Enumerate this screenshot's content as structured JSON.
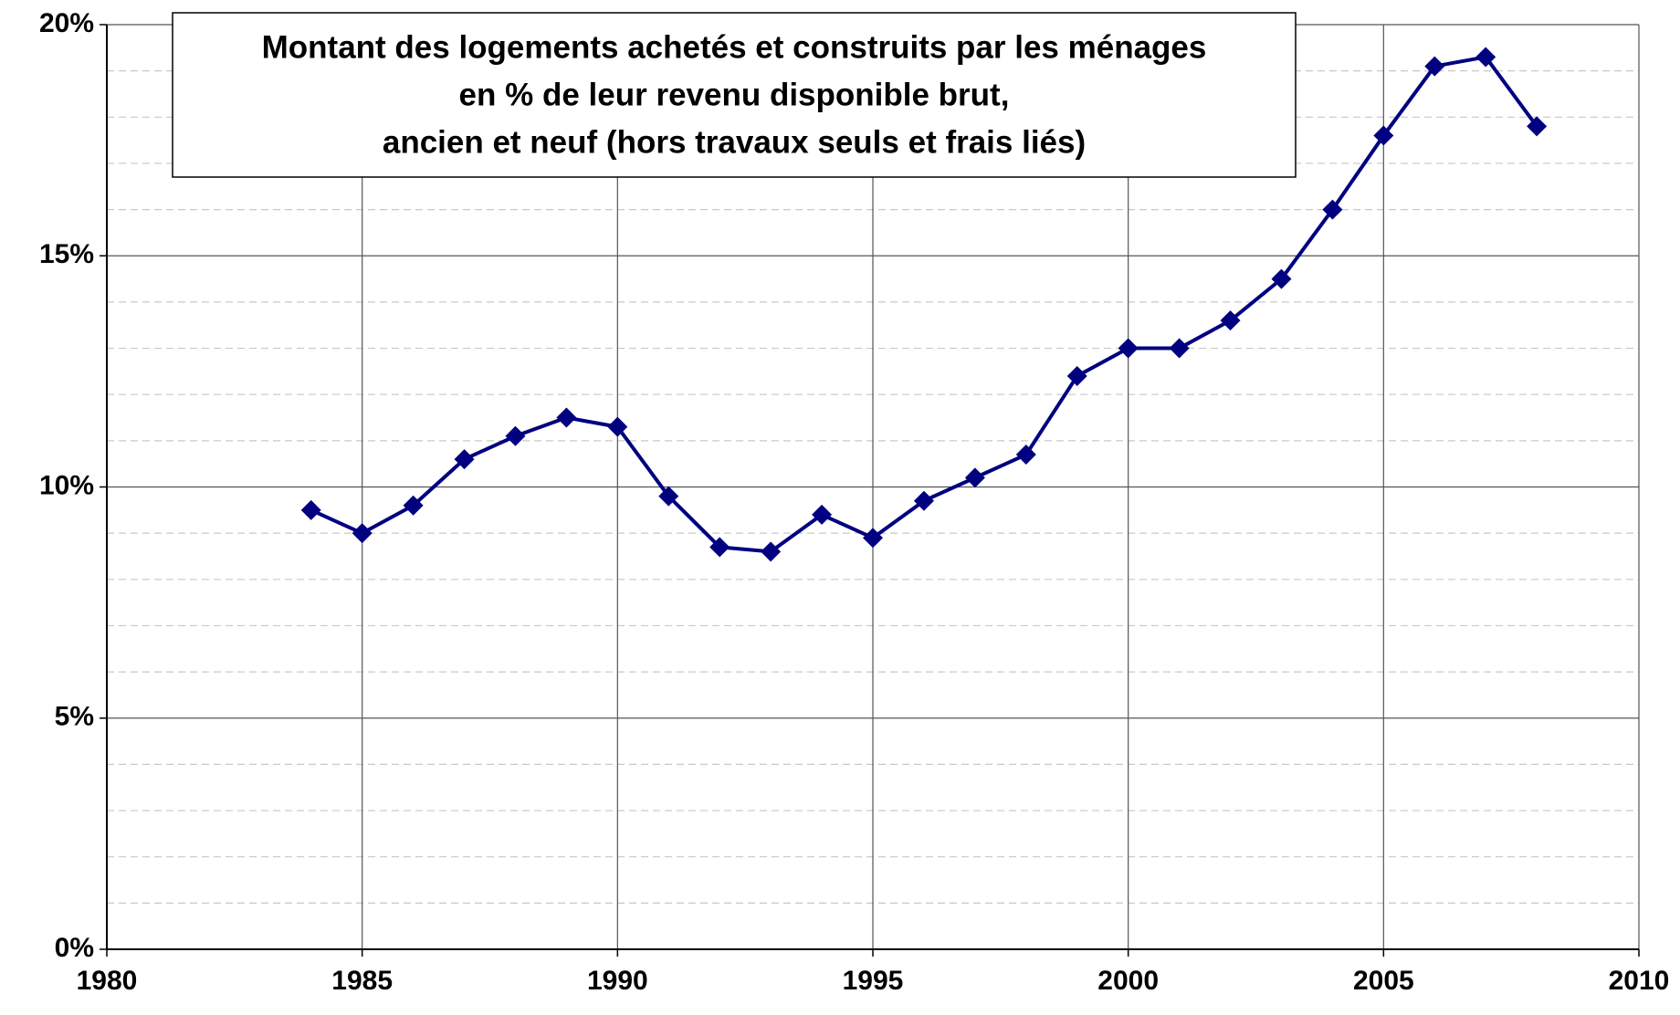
{
  "chart_data": {
    "type": "line",
    "title": [
      "Montant des logements achetés et construits par les ménages",
      "en % de leur revenu disponible brut,",
      "ancien et neuf (hors travaux seuls et frais liés)"
    ],
    "x": [
      1984,
      1985,
      1986,
      1987,
      1988,
      1989,
      1990,
      1991,
      1992,
      1993,
      1994,
      1995,
      1996,
      1997,
      1998,
      1999,
      2000,
      2001,
      2002,
      2003,
      2004,
      2005,
      2006,
      2007,
      2008
    ],
    "series": [
      {
        "color": "#000080",
        "values": [
          9.5,
          9.0,
          9.6,
          10.6,
          11.1,
          11.5,
          11.3,
          9.8,
          8.7,
          8.6,
          9.4,
          8.9,
          9.7,
          10.2,
          10.7,
          12.4,
          13.0,
          13.0,
          13.6,
          14.5,
          16.0,
          17.6,
          19.1,
          19.3,
          17.8
        ]
      }
    ],
    "xlim": [
      1980,
      2010
    ],
    "xticks": [
      1980,
      1985,
      1990,
      1995,
      2000,
      2005,
      2010
    ],
    "ylim": [
      0,
      20
    ],
    "yticks": [
      {
        "value": 0,
        "label": "0%"
      },
      {
        "value": 5,
        "label": "5%"
      },
      {
        "value": 10,
        "label": "10%"
      },
      {
        "value": 15,
        "label": "15%"
      },
      {
        "value": 20,
        "label": "20%"
      }
    ],
    "yminorticks": [
      1,
      2,
      3,
      4,
      6,
      7,
      8,
      9,
      11,
      12,
      13,
      14,
      16,
      17,
      18,
      19
    ],
    "grid": true
  }
}
